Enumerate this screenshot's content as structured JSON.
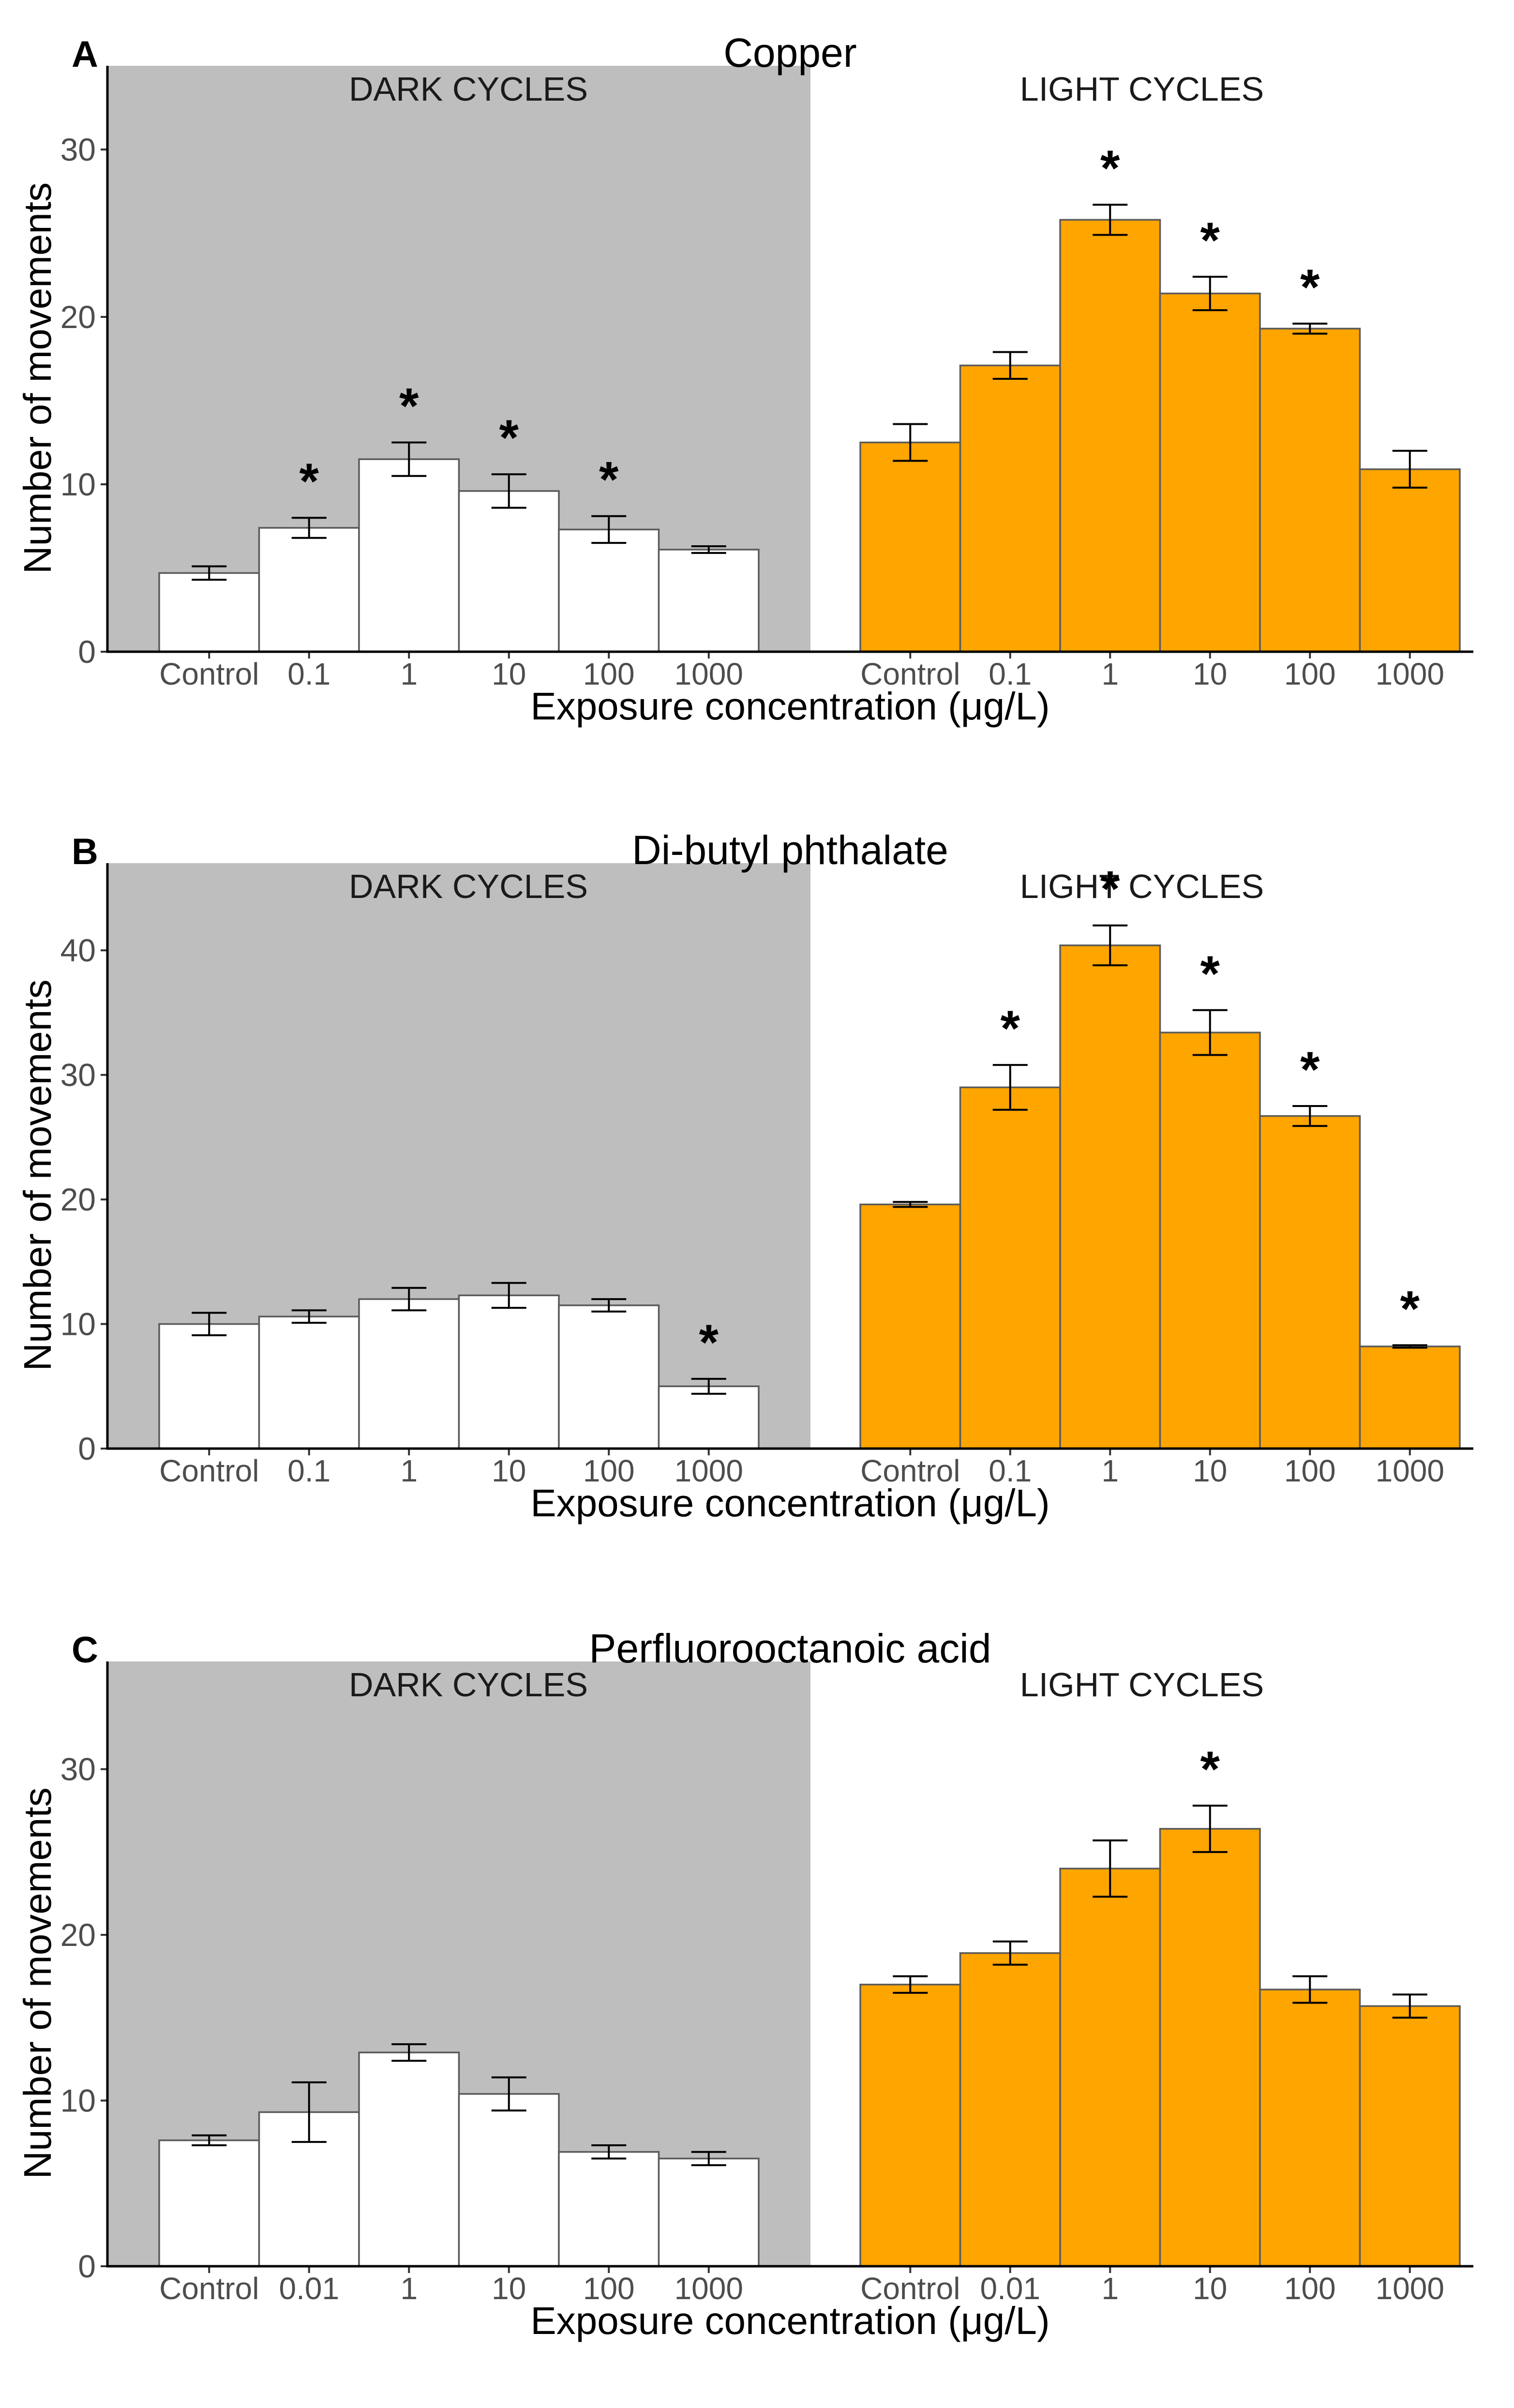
{
  "chart_data": [
    {
      "panel": "A",
      "type": "bar",
      "title": "Copper",
      "xlabel": "Exposure concentration (μg/L)",
      "ylabel": "Number of movements",
      "ylim": [
        0,
        35
      ],
      "yticks": [
        0,
        10,
        20,
        30
      ],
      "categories": [
        "Control",
        "0.1",
        "1",
        "10",
        "100",
        "1000"
      ],
      "series": [
        {
          "name": "DARK CYCLES",
          "color": "#ffffff",
          "background": "#bebebe",
          "values": [
            4.7,
            7.4,
            11.5,
            9.6,
            7.3,
            6.1
          ],
          "errors": [
            0.4,
            0.6,
            1.0,
            1.0,
            0.8,
            0.2
          ],
          "significant": [
            false,
            true,
            true,
            true,
            true,
            false
          ]
        },
        {
          "name": "LIGHT CYCLES",
          "color": "#ffa500",
          "background": "#ffffff",
          "values": [
            12.5,
            17.1,
            25.8,
            21.4,
            19.3,
            10.9
          ],
          "errors": [
            1.1,
            0.8,
            0.9,
            1.0,
            0.3,
            1.1
          ],
          "significant": [
            false,
            false,
            true,
            true,
            true,
            false
          ]
        }
      ],
      "significance_marker": "*"
    },
    {
      "panel": "B",
      "type": "bar",
      "title": "Di-butyl phthalate",
      "xlabel": "Exposure concentration (μg/L)",
      "ylabel": "Number of movements",
      "ylim": [
        0,
        47
      ],
      "yticks": [
        0,
        10,
        20,
        30,
        40
      ],
      "categories": [
        "Control",
        "0.1",
        "1",
        "10",
        "100",
        "1000"
      ],
      "series": [
        {
          "name": "DARK CYCLES",
          "color": "#ffffff",
          "background": "#bebebe",
          "values": [
            10.0,
            10.6,
            12.0,
            12.3,
            11.5,
            5.0
          ],
          "errors": [
            0.9,
            0.5,
            0.9,
            1.0,
            0.5,
            0.6
          ],
          "significant": [
            false,
            false,
            false,
            false,
            false,
            true
          ]
        },
        {
          "name": "LIGHT CYCLES",
          "color": "#ffa500",
          "background": "#ffffff",
          "values": [
            19.6,
            29.0,
            40.4,
            33.4,
            26.7,
            8.2
          ],
          "errors": [
            0.2,
            1.8,
            1.6,
            1.8,
            0.8,
            0.1
          ],
          "significant": [
            false,
            true,
            true,
            true,
            true,
            true
          ]
        }
      ],
      "significance_marker": "*"
    },
    {
      "panel": "C",
      "type": "bar",
      "title": "Perfluorooctanoic acid",
      "xlabel": "Exposure concentration (μg/L)",
      "ylabel": "Number of movements",
      "ylim": [
        0,
        36.5
      ],
      "yticks": [
        0,
        10,
        20,
        30
      ],
      "categories": [
        "Control",
        "0.01",
        "1",
        "10",
        "100",
        "1000"
      ],
      "series": [
        {
          "name": "DARK CYCLES",
          "color": "#ffffff",
          "background": "#bebebe",
          "values": [
            7.6,
            9.3,
            12.9,
            10.4,
            6.9,
            6.5
          ],
          "errors": [
            0.3,
            1.8,
            0.5,
            1.0,
            0.4,
            0.4
          ],
          "significant": [
            false,
            false,
            false,
            false,
            false,
            false
          ]
        },
        {
          "name": "LIGHT CYCLES",
          "color": "#ffa500",
          "background": "#ffffff",
          "values": [
            17.0,
            18.9,
            24.0,
            26.4,
            16.7,
            15.7
          ],
          "errors": [
            0.5,
            0.7,
            1.7,
            1.4,
            0.8,
            0.7
          ],
          "significant": [
            false,
            false,
            false,
            true,
            false,
            false
          ]
        }
      ],
      "significance_marker": "*"
    }
  ]
}
